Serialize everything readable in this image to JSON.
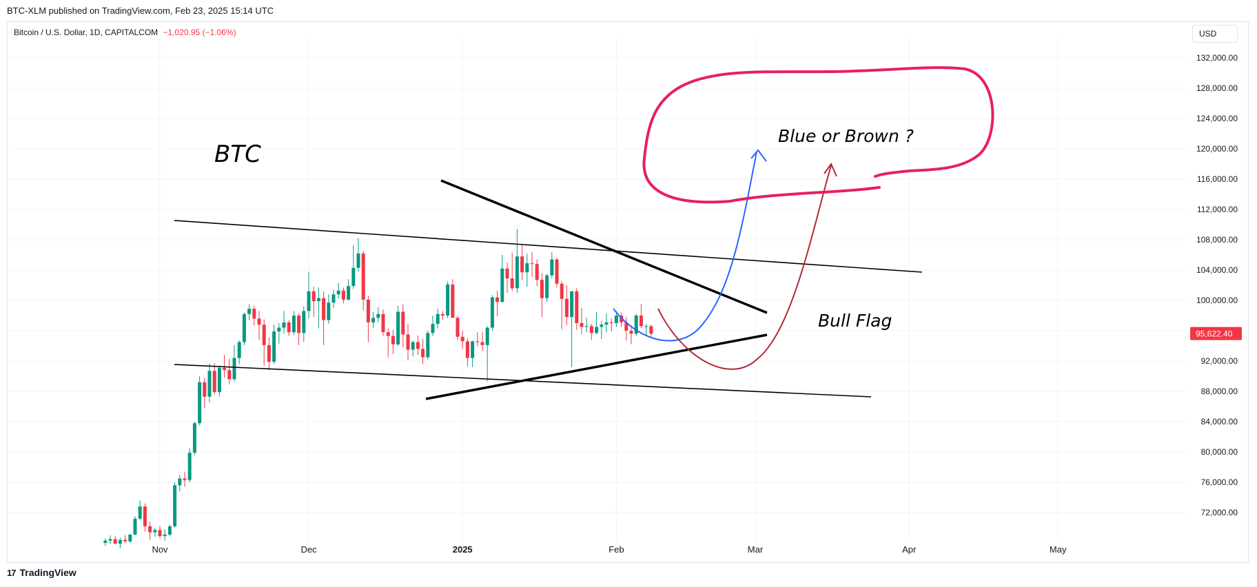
{
  "header": {
    "publisher_line": "BTC-XLM published on TradingView.com, Feb 23, 2025 15:14 UTC",
    "symbol": "Bitcoin / U.S. Dollar, 1D, CAPITALCOM",
    "change": "−1,020.95 (−1.06%)",
    "currency": "USD"
  },
  "footer": {
    "brand": "TradingView",
    "logo_glyph": "17"
  },
  "colors": {
    "up": "#089981",
    "down": "#f23645",
    "grid": "#f0f3fa",
    "price_tag": "#f23645",
    "blue_path": "#2962ff",
    "brown_path": "#b22833",
    "cloud": "#e91e63",
    "trendline": "#000000"
  },
  "annotations": {
    "btc_label": "BTC",
    "bubble_text": "Blue or Brown ?",
    "bull_flag": "Bull Flag"
  },
  "chart_data": {
    "type": "candlestick",
    "symbol": "Bitcoin / U.S. Dollar",
    "interval": "1D",
    "x_axis": {
      "ticks": [
        "Nov",
        "Dec",
        "2025",
        "Feb",
        "Mar",
        "Apr",
        "May"
      ]
    },
    "y_axis": {
      "ylim": [
        68000,
        134000
      ],
      "ticks": [
        "132,000.00",
        "128,000.00",
        "124,000.00",
        "120,000.00",
        "116,000.00",
        "112,000.00",
        "108,000.00",
        "104,000.00",
        "100,000.00",
        "96,000.00",
        "92,000.00",
        "88,000.00",
        "84,000.00",
        "80,000.00",
        "76,000.00",
        "72,000.00"
      ],
      "tick_values": [
        132000,
        128000,
        124000,
        120000,
        116000,
        112000,
        108000,
        104000,
        100000,
        96000,
        92000,
        88000,
        84000,
        80000,
        76000,
        72000
      ]
    },
    "last_price": 95622.4,
    "last_price_label": "95,622.40",
    "grid": true,
    "start_date": "2024-10-21",
    "candles": [
      [
        68000,
        68600,
        67600,
        68300
      ],
      [
        68300,
        69000,
        67900,
        68500
      ],
      [
        68500,
        68900,
        67800,
        67900
      ],
      [
        67900,
        68700,
        67300,
        68400
      ],
      [
        68400,
        69000,
        68000,
        68200
      ],
      [
        68200,
        69200,
        68000,
        69100
      ],
      [
        69100,
        71500,
        69000,
        71200
      ],
      [
        71200,
        73600,
        71000,
        72800
      ],
      [
        72800,
        73200,
        69500,
        70200
      ],
      [
        70200,
        70800,
        68400,
        69400
      ],
      [
        69400,
        70000,
        68800,
        69700
      ],
      [
        69700,
        70200,
        68600,
        68900
      ],
      [
        68900,
        69800,
        68300,
        69100
      ],
      [
        69100,
        70400,
        68900,
        70200
      ],
      [
        70200,
        76000,
        70000,
        75600
      ],
      [
        75600,
        77000,
        74800,
        76500
      ],
      [
        76500,
        77400,
        75400,
        76300
      ],
      [
        76300,
        80500,
        76000,
        79900
      ],
      [
        79900,
        84000,
        79600,
        83800
      ],
      [
        83800,
        90000,
        83500,
        89200
      ],
      [
        89200,
        89800,
        85800,
        87300
      ],
      [
        87300,
        91700,
        86500,
        90700
      ],
      [
        90700,
        91700,
        87600,
        87900
      ],
      [
        87900,
        91400,
        87300,
        91100
      ],
      [
        91100,
        92800,
        89800,
        90800
      ],
      [
        90800,
        92300,
        88900,
        89600
      ],
      [
        89600,
        94100,
        89300,
        92400
      ],
      [
        92400,
        94700,
        91600,
        94500
      ],
      [
        94500,
        98400,
        94100,
        98200
      ],
      [
        98200,
        99500,
        97400,
        98900
      ],
      [
        98900,
        99300,
        96700,
        97600
      ],
      [
        97600,
        98600,
        94800,
        96800
      ],
      [
        96800,
        97500,
        91400,
        94100
      ],
      [
        94100,
        95100,
        90800,
        91900
      ],
      [
        91900,
        96800,
        91600,
        95900
      ],
      [
        95900,
        97000,
        94300,
        96400
      ],
      [
        96400,
        98600,
        95600,
        97100
      ],
      [
        97100,
        97400,
        95300,
        95800
      ],
      [
        95800,
        98600,
        95400,
        98000
      ],
      [
        98000,
        98300,
        94100,
        95700
      ],
      [
        95700,
        99200,
        94500,
        98600
      ],
      [
        98600,
        103800,
        97600,
        101200
      ],
      [
        101200,
        101800,
        97800,
        99900
      ],
      [
        99900,
        101700,
        96300,
        100300
      ],
      [
        100300,
        101200,
        94100,
        97400
      ],
      [
        97400,
        100800,
        96900,
        99700
      ],
      [
        99700,
        101400,
        99000,
        100800
      ],
      [
        100800,
        102300,
        100200,
        101300
      ],
      [
        101300,
        101700,
        99600,
        100100
      ],
      [
        100100,
        102800,
        100000,
        101900
      ],
      [
        101900,
        107300,
        101500,
        104300
      ],
      [
        104300,
        108200,
        103800,
        106200
      ],
      [
        106200,
        106500,
        98700,
        100100
      ],
      [
        100100,
        100600,
        94500,
        97100
      ],
      [
        97100,
        98500,
        96400,
        97700
      ],
      [
        97700,
        99100,
        97100,
        98200
      ],
      [
        98200,
        98800,
        95300,
        95800
      ],
      [
        95800,
        96300,
        92500,
        95300
      ],
      [
        95300,
        96100,
        92900,
        94200
      ],
      [
        94200,
        99300,
        94000,
        98500
      ],
      [
        98500,
        99500,
        93800,
        95500
      ],
      [
        95500,
        96900,
        92100,
        93500
      ],
      [
        93500,
        94700,
        92600,
        94500
      ],
      [
        94500,
        95400,
        92800,
        93600
      ],
      [
        93600,
        94900,
        91600,
        92500
      ],
      [
        92500,
        96000,
        92200,
        95700
      ],
      [
        95700,
        98000,
        95300,
        96900
      ],
      [
        96900,
        98900,
        96300,
        98200
      ],
      [
        98200,
        98600,
        97400,
        98000
      ],
      [
        98000,
        102500,
        97700,
        102100
      ],
      [
        102100,
        102800,
        97900,
        97700
      ],
      [
        97700,
        98000,
        94800,
        95200
      ],
      [
        95200,
        96000,
        93600,
        94600
      ],
      [
        94600,
        95000,
        91300,
        92400
      ],
      [
        92400,
        94700,
        91200,
        94600
      ],
      [
        94600,
        95800,
        93900,
        94500
      ],
      [
        94500,
        95800,
        93300,
        94100
      ],
      [
        94100,
        96600,
        89300,
        96400
      ],
      [
        96400,
        100700,
        96000,
        100400
      ],
      [
        100400,
        101300,
        97900,
        99800
      ],
      [
        99800,
        106000,
        99700,
        104200
      ],
      [
        104200,
        105000,
        101000,
        102900
      ],
      [
        102900,
        106300,
        101200,
        101600
      ],
      [
        101600,
        109400,
        101000,
        105800
      ],
      [
        105800,
        107300,
        102700,
        103700
      ],
      [
        103700,
        106200,
        101800,
        104900
      ],
      [
        104900,
        106400,
        103100,
        104800
      ],
      [
        104800,
        105400,
        101900,
        102700
      ],
      [
        102700,
        103600,
        97800,
        100300
      ],
      [
        100300,
        103500,
        99800,
        103300
      ],
      [
        103300,
        106400,
        102900,
        105400
      ],
      [
        105400,
        105600,
        101700,
        102200
      ],
      [
        102200,
        102500,
        96200,
        100200
      ],
      [
        100200,
        102000,
        96700,
        97800
      ],
      [
        97800,
        101000,
        91200,
        101200
      ],
      [
        101200,
        101600,
        96100,
        97000
      ],
      [
        97000,
        99000,
        95600,
        96500
      ],
      [
        96500,
        97700,
        95800,
        96600
      ],
      [
        96600,
        96900,
        94800,
        95700
      ],
      [
        95700,
        98500,
        95500,
        96500
      ],
      [
        96500,
        97300,
        94900,
        96800
      ],
      [
        96800,
        98300,
        95800,
        97100
      ],
      [
        97100,
        97600,
        95900,
        97000
      ],
      [
        97000,
        98600,
        96500,
        98000
      ],
      [
        98000,
        98400,
        96500,
        97100
      ],
      [
        97100,
        97800,
        94700,
        96000
      ],
      [
        96000,
        96700,
        94200,
        95600
      ],
      [
        95600,
        98200,
        95300,
        98000
      ],
      [
        98000,
        99500,
        96300,
        96600
      ],
      [
        96600,
        96900,
        95300,
        96600
      ],
      [
        96600,
        96800,
        95100,
        95600
      ]
    ]
  }
}
